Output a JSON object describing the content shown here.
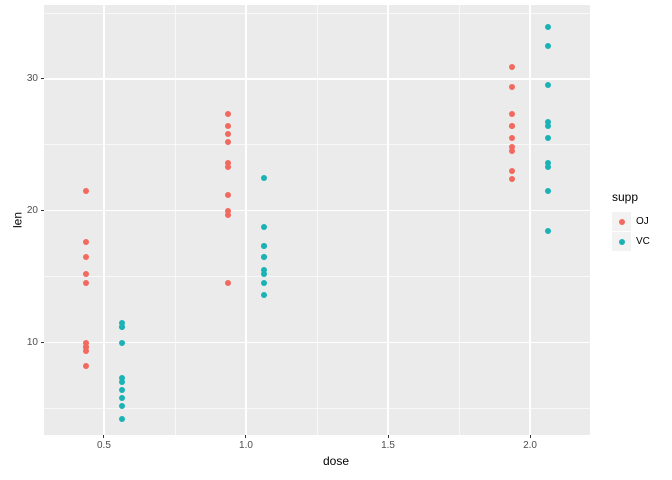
{
  "figure": {
    "background": "#FFFFFF",
    "panel_background": "#EBEBEB",
    "grid_color": "#FFFFFF",
    "tick_mark_color": "#333333",
    "tick_label_color": "#4D4D4D",
    "axis_title_color": "#000000",
    "legend_key_background": "#F2F2F2"
  },
  "chart_data": {
    "type": "scatter",
    "title": "",
    "xlabel": "dose",
    "ylabel": "len",
    "grid": true,
    "xlim": [
      0.289,
      2.211
    ],
    "ylim": [
      3.0,
      35.6
    ],
    "x_ticks": [
      0.5,
      1.0,
      1.5,
      2.0
    ],
    "x_tick_labels": [
      "0.5",
      "1.0",
      "1.5",
      "2.0"
    ],
    "x_minor_ticks": [
      0.75,
      1.25,
      1.75
    ],
    "y_ticks": [
      10,
      20,
      30
    ],
    "y_tick_labels": [
      "10",
      "20",
      "30"
    ],
    "y_minor_ticks": [
      5,
      15,
      25,
      35
    ],
    "legend": {
      "title": "supp",
      "position": "right",
      "entries": [
        {
          "label": "OJ",
          "color": "#F1695F"
        },
        {
          "label": "VC",
          "color": "#1AB2B5"
        }
      ]
    },
    "series": [
      {
        "name": "OJ",
        "color": "#F1695F",
        "dodge": -0.062,
        "points": [
          [
            0.5,
            15.2
          ],
          [
            0.5,
            21.5
          ],
          [
            0.5,
            17.6
          ],
          [
            0.5,
            9.7
          ],
          [
            0.5,
            14.5
          ],
          [
            0.5,
            10.0
          ],
          [
            0.5,
            8.2
          ],
          [
            0.5,
            9.4
          ],
          [
            0.5,
            16.5
          ],
          [
            0.5,
            9.7
          ],
          [
            1.0,
            19.7
          ],
          [
            1.0,
            23.3
          ],
          [
            1.0,
            23.6
          ],
          [
            1.0,
            26.4
          ],
          [
            1.0,
            20.0
          ],
          [
            1.0,
            25.2
          ],
          [
            1.0,
            25.8
          ],
          [
            1.0,
            21.2
          ],
          [
            1.0,
            14.5
          ],
          [
            1.0,
            27.3
          ],
          [
            2.0,
            25.5
          ],
          [
            2.0,
            26.4
          ],
          [
            2.0,
            22.4
          ],
          [
            2.0,
            24.5
          ],
          [
            2.0,
            24.8
          ],
          [
            2.0,
            30.9
          ],
          [
            2.0,
            26.4
          ],
          [
            2.0,
            27.3
          ],
          [
            2.0,
            29.4
          ],
          [
            2.0,
            23.0
          ]
        ]
      },
      {
        "name": "VC",
        "color": "#1AB2B5",
        "dodge": 0.062,
        "points": [
          [
            0.5,
            4.2
          ],
          [
            0.5,
            11.5
          ],
          [
            0.5,
            7.3
          ],
          [
            0.5,
            5.8
          ],
          [
            0.5,
            6.4
          ],
          [
            0.5,
            10.0
          ],
          [
            0.5,
            11.2
          ],
          [
            0.5,
            11.2
          ],
          [
            0.5,
            5.2
          ],
          [
            0.5,
            7.0
          ],
          [
            1.0,
            16.5
          ],
          [
            1.0,
            16.5
          ],
          [
            1.0,
            15.2
          ],
          [
            1.0,
            17.3
          ],
          [
            1.0,
            22.5
          ],
          [
            1.0,
            17.3
          ],
          [
            1.0,
            13.6
          ],
          [
            1.0,
            14.5
          ],
          [
            1.0,
            18.8
          ],
          [
            1.0,
            15.5
          ],
          [
            2.0,
            23.6
          ],
          [
            2.0,
            18.5
          ],
          [
            2.0,
            33.9
          ],
          [
            2.0,
            25.5
          ],
          [
            2.0,
            26.4
          ],
          [
            2.0,
            32.5
          ],
          [
            2.0,
            26.7
          ],
          [
            2.0,
            21.5
          ],
          [
            2.0,
            23.3
          ],
          [
            2.0,
            29.5
          ]
        ]
      }
    ]
  }
}
